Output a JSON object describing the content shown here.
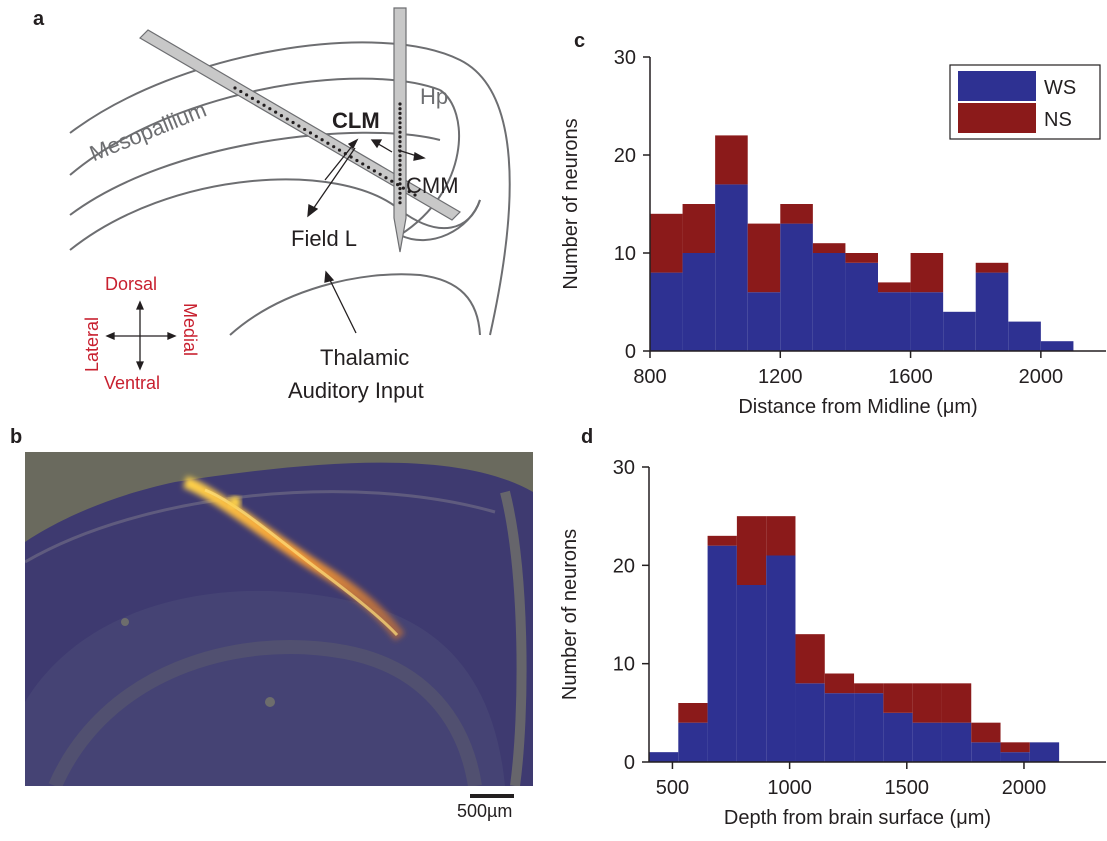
{
  "panels": {
    "a": "a",
    "b": "b",
    "c": "c",
    "d": "d"
  },
  "diagram": {
    "labels": {
      "mesopallium": "Mesopallium",
      "clm": "CLM",
      "hp": "Hp",
      "cmm": "CMM",
      "field_l": "Field L",
      "thalamic_line1": "Thalamic",
      "thalamic_line2": "Auditory Input"
    },
    "compass": {
      "dorsal": "Dorsal",
      "ventral": "Ventral",
      "lateral": "Lateral",
      "medial": "Medial"
    },
    "colors": {
      "outline": "#6d6e71",
      "compass_text": "#c8202f",
      "text": "#231f20"
    }
  },
  "micrograph": {
    "scale_bar": "500µm"
  },
  "chart_data": [
    {
      "id": "c",
      "type": "bar",
      "stacked": true,
      "histogram": true,
      "bin_edges": [
        800,
        900,
        1000,
        1100,
        1200,
        1300,
        1400,
        1500,
        1600,
        1700,
        1800,
        1900,
        2000,
        2100,
        2200
      ],
      "series": [
        {
          "name": "WS",
          "color": "#2e3192",
          "values": [
            8,
            10,
            17,
            6,
            13,
            10,
            9,
            6,
            6,
            4,
            8,
            3,
            1,
            0
          ]
        },
        {
          "name": "NS",
          "color": "#8b1a1a",
          "values": [
            6,
            5,
            5,
            7,
            2,
            1,
            1,
            1,
            4,
            0,
            1,
            0,
            0,
            0
          ]
        }
      ],
      "xlabel": "Distance from Midline (μm)",
      "ylabel": "Number of neurons",
      "xlim": [
        800,
        2200
      ],
      "ylim": [
        0,
        30
      ],
      "xticks": [
        800,
        1200,
        1600,
        2000
      ],
      "yticks": [
        0,
        10,
        20,
        30
      ],
      "legend": "top-right"
    },
    {
      "id": "d",
      "type": "bar",
      "stacked": true,
      "histogram": true,
      "bin_edges": [
        400,
        525,
        650,
        775,
        900,
        1025,
        1150,
        1275,
        1400,
        1525,
        1650,
        1775,
        1900,
        2025,
        2150,
        2275
      ],
      "series": [
        {
          "name": "WS",
          "color": "#2e3192",
          "values": [
            1,
            4,
            22,
            18,
            21,
            8,
            7,
            7,
            5,
            4,
            4,
            2,
            1,
            2,
            0
          ]
        },
        {
          "name": "NS",
          "color": "#8b1a1a",
          "values": [
            0,
            2,
            1,
            7,
            4,
            5,
            2,
            1,
            3,
            4,
            4,
            2,
            1,
            0,
            0
          ]
        }
      ],
      "xlabel": "Depth from brain surface (μm)",
      "ylabel": "Number of neurons",
      "xlim": [
        400,
        2350
      ],
      "ylim": [
        0,
        30
      ],
      "xticks": [
        500,
        1000,
        1500,
        2000
      ],
      "yticks": [
        0,
        10,
        20,
        30
      ]
    }
  ]
}
